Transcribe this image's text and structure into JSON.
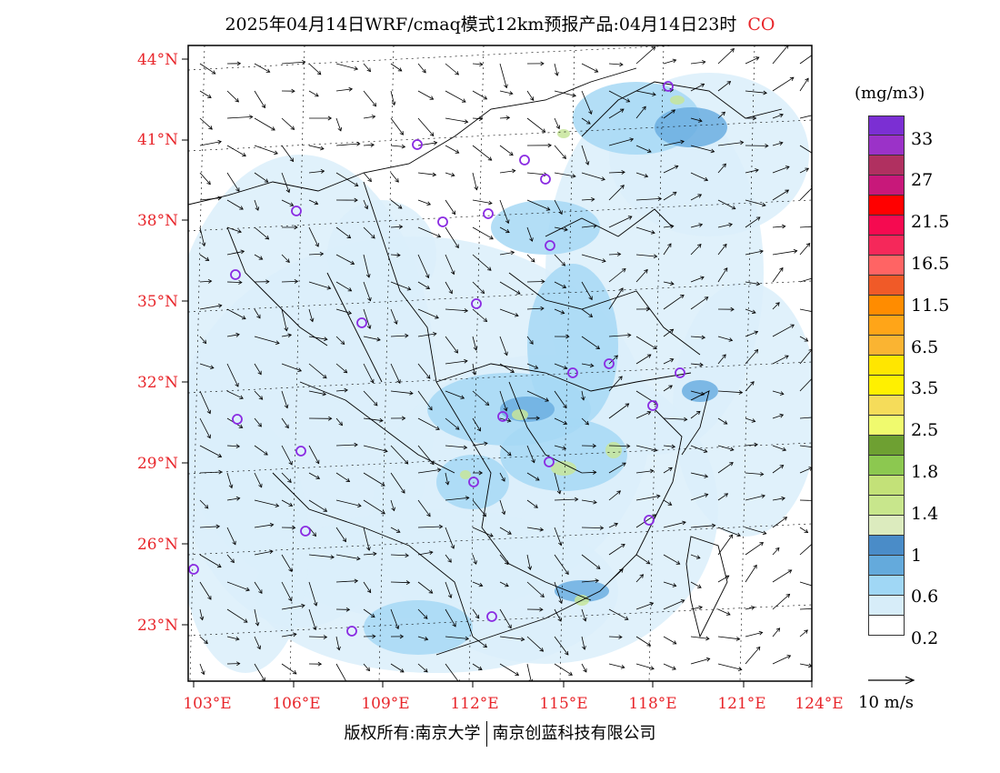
{
  "title": {
    "text": "2025年04月14日WRF/cmaq模式12km预报产品:04月14日23时",
    "species": "CO"
  },
  "map": {
    "lat_labels": [
      "44°N",
      "41°N",
      "38°N",
      "35°N",
      "32°N",
      "29°N",
      "26°N",
      "23°N"
    ],
    "lon_labels": [
      "103°E",
      "106°E",
      "109°E",
      "112°E",
      "115°E",
      "118°E",
      "121°E",
      "124°E"
    ],
    "colors": {
      "frame": "#000000",
      "boundary": "#000000",
      "gridline": "#000000",
      "station_marker": "#8a2be2",
      "axis_label": "#e8262b",
      "low_fill": "#dbeefa",
      "mid_fill": "#a6d8f5",
      "high_fill": "#6baee0",
      "peak_fill": "#c7e59a"
    }
  },
  "legend": {
    "unit": "(mg/m3)",
    "labels": [
      "33",
      "27",
      "21.5",
      "16.5",
      "11.5",
      "6.5",
      "3.5",
      "2.5",
      "1.8",
      "1.4",
      "1",
      "0.6",
      "0.2"
    ],
    "colors": [
      "#7b2fd3",
      "#9b32c8",
      "#b03060",
      "#c8187a",
      "#ff0000",
      "#f50a50",
      "#f5285a",
      "#ff6464",
      "#f05a28",
      "#ff8c00",
      "#ffa518",
      "#fab432",
      "#ffe600",
      "#fff000",
      "#f5dc5a",
      "#f0fa6e",
      "#6ea032",
      "#8cc850",
      "#c3e178",
      "#c8e68c",
      "#dcebbe",
      "#4a8cc8",
      "#64aadc",
      "#a0d7f5",
      "#d7edf9",
      "#ffffff"
    ]
  },
  "vector_key": {
    "label": "10 m/s"
  },
  "credit": {
    "left": "版权所有:南京大学",
    "right": "南京创蓝科技有限公司"
  }
}
